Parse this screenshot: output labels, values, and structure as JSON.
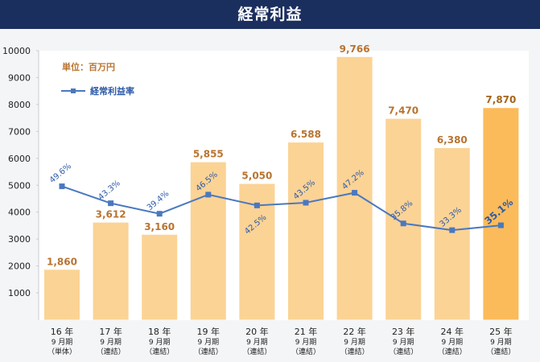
{
  "header": {
    "title": "経常利益"
  },
  "chart_data": {
    "type": "bar",
    "title": "経常利益",
    "unit_label": "単位：百万円",
    "categories": [
      [
        "16 年",
        "9 月期",
        "（単体）"
      ],
      [
        "17 年",
        "9 月期",
        "（連結）"
      ],
      [
        "18 年",
        "9 月期",
        "（連結）"
      ],
      [
        "19 年",
        "9 月期",
        "（連結）"
      ],
      [
        "20 年",
        "9 月期",
        "（連結）"
      ],
      [
        "21 年",
        "9 月期",
        "（連結）"
      ],
      [
        "22 年",
        "9 月期",
        "（連結）"
      ],
      [
        "23 年",
        "9 月期",
        "（連結）"
      ],
      [
        "24 年",
        "9 月期",
        "（連結）"
      ],
      [
        "25 年",
        "9 月期",
        "（連結）"
      ]
    ],
    "values": [
      1860,
      3612,
      3160,
      5855,
      5050,
      6588,
      9766,
      7470,
      6380,
      7870
    ],
    "value_labels": [
      "1,860",
      "3,612",
      "3,160",
      "5,855",
      "5,050",
      "6.588",
      "9,766",
      "7,470",
      "6,380",
      "7,870"
    ],
    "line_series": {
      "name": "経常利益率",
      "values": [
        49.6,
        43.3,
        39.4,
        46.5,
        42.5,
        43.5,
        47.2,
        35.8,
        33.3,
        35.1
      ],
      "labels": [
        "49.6%",
        "43.3%",
        "39.4%",
        "46.5%",
        "42.5%",
        "43.5%",
        "47.2%",
        "35.8%",
        "33.3%",
        "35.1%"
      ]
    },
    "yticks": [
      1000,
      2000,
      3000,
      4000,
      5000,
      6000,
      7000,
      8000,
      9000,
      10000
    ],
    "ylim": [
      0,
      10000
    ],
    "colors": {
      "bar": "#fbd395",
      "bar_highlight": "#fbbb5a",
      "bar_label": "#b87430",
      "line": "#4a78bf",
      "line_label": "#2e5aa8"
    }
  }
}
